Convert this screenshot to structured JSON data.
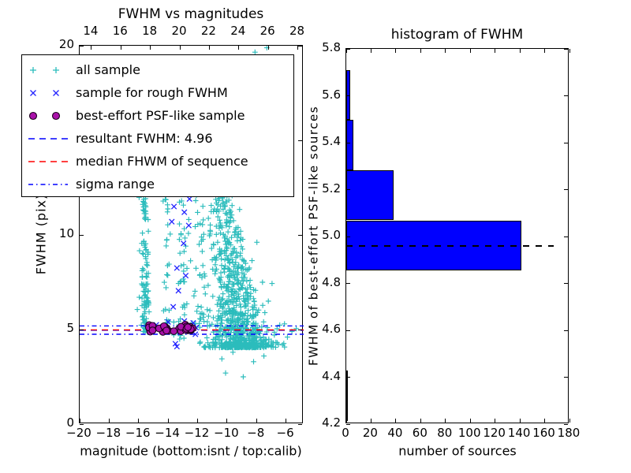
{
  "figure": {
    "background": "#ffffff"
  },
  "colors": {
    "all_sample": "#2bbcbc",
    "rough_fwhm": "#2424ff",
    "psf_sample_fill": "#a911a9",
    "psf_sample_edge": "#1c001c",
    "resultant_line": "#0000ff",
    "median_line": "#ff0000",
    "sigma_line": "#0000ff",
    "hist_bar": "#0000ff",
    "hist_median_dash": "#000000"
  },
  "chart_data": [
    {
      "id": "fwhm_vs_magnitudes",
      "type": "scatter",
      "title": "FWHM vs magnitudes",
      "xlabel": "magnitude (bottom:isnt / top:calib)",
      "ylabel": "FWHM (pix)",
      "xlim": [
        -20,
        -4.8
      ],
      "ylim": [
        0,
        20
      ],
      "xticks": [
        -20,
        -18,
        -16,
        -14,
        -12,
        -10,
        -8,
        -6
      ],
      "yticks": [
        0,
        5,
        10,
        15,
        20
      ],
      "top_axis": {
        "xlim": [
          13.2,
          28.4
        ],
        "xticks": [
          14,
          16,
          18,
          20,
          22,
          24,
          26,
          28
        ]
      },
      "grid": false,
      "legend_position": "upper-left",
      "series": [
        {
          "name": "all sample",
          "marker": "plus",
          "clusters": [
            {
              "cx": -15.55,
              "sx": 0.17,
              "ymin": 4.85,
              "ymax": 13.6,
              "n": 130,
              "ypow": 1.7
            },
            {
              "cx": -14.15,
              "sx": 0.13,
              "ymin": 5.3,
              "ymax": 13.4,
              "n": 32,
              "ypow": 1.2
            },
            {
              "cx": -13.05,
              "sx": 0.22,
              "ymin": 4.45,
              "ymax": 13.6,
              "n": 50,
              "ypow": 1.3
            },
            {
              "cx": -11.85,
              "sx": 0.2,
              "ymin": 4.9,
              "ymax": 13.0,
              "n": 38,
              "ypow": 1.4
            },
            {
              "cx": -9.2,
              "sx": 1.05,
              "ymin": 4.05,
              "ymax": 13.5,
              "n": 900,
              "ypow": 2.4,
              "taper": 0.08,
              "drift": -0.15
            },
            {
              "cx": -11.2,
              "sx": 2.6,
              "ymin": 13.6,
              "ymax": 19.9,
              "n": 30,
              "ypow": 1.0
            }
          ],
          "points": [
            [
              -10.1,
              2.7
            ],
            [
              -8.9,
              2.5
            ],
            [
              -8.2,
              3.3
            ],
            [
              -7.5,
              3.6
            ],
            [
              -10.35,
              3.45
            ],
            [
              -9.6,
              3.8
            ],
            [
              -7.0,
              4.1
            ],
            [
              -6.6,
              4.3
            ],
            [
              -5.6,
              4.9
            ],
            [
              -5.3,
              5.05
            ],
            [
              -5.9,
              4.6
            ],
            [
              -6.1,
              5.3
            ],
            [
              -7.2,
              6.5
            ]
          ]
        },
        {
          "name": "sample for rough FWHM",
          "marker": "x",
          "points": [
            [
              -13.3,
              13.4
            ],
            [
              -12.85,
              13.1
            ],
            [
              -13.55,
              12.9
            ],
            [
              -12.7,
              12.6
            ],
            [
              -13.25,
              12.2
            ],
            [
              -12.55,
              11.9
            ],
            [
              -13.6,
              11.5
            ],
            [
              -12.9,
              11.2
            ],
            [
              -13.75,
              10.7
            ],
            [
              -12.6,
              10.5
            ],
            [
              -12.95,
              9.55
            ],
            [
              -13.4,
              8.25
            ],
            [
              -12.8,
              7.85
            ],
            [
              -13.3,
              7.05
            ],
            [
              -13.65,
              6.2
            ],
            [
              -12.9,
              5.45
            ],
            [
              -14.8,
              5.25
            ],
            [
              -14.35,
              5.15
            ],
            [
              -12.3,
              5.35
            ],
            [
              -12.1,
              5.1
            ],
            [
              -14.0,
              4.95
            ],
            [
              -12.55,
              4.9
            ],
            [
              -13.5,
              4.25
            ],
            [
              -13.4,
              4.1
            ],
            [
              -14.0,
              5.4
            ],
            [
              -12.15,
              4.75
            ]
          ]
        },
        {
          "name": "best-effort PSF-like sample",
          "marker": "circle",
          "blob": {
            "xmin": -15.35,
            "xmax": -12.25,
            "ymean": 5.02,
            "ysd": 0.09,
            "ymin": 4.84,
            "ymax": 5.26,
            "n": 34
          }
        }
      ],
      "lines": [
        {
          "name": "resultant FWHM",
          "value": 4.96,
          "style": "dashed",
          "color_key": "resultant_line"
        },
        {
          "name": "median FHWM of sequence",
          "value": 4.98,
          "style": "dashed",
          "color_key": "median_line"
        },
        {
          "name": "sigma range upper",
          "value": 5.19,
          "style": "dashdot",
          "color_key": "sigma_line"
        },
        {
          "name": "sigma range lower",
          "value": 4.75,
          "style": "dashdot",
          "color_key": "sigma_line"
        }
      ],
      "legend": [
        {
          "label": "all sample",
          "type": "marker",
          "marker": "plus",
          "color_key": "all_sample"
        },
        {
          "label": "sample for rough FWHM",
          "type": "marker",
          "marker": "x",
          "color_key": "rough_fwhm"
        },
        {
          "label": "best-effort PSF-like sample",
          "type": "marker",
          "marker": "circle",
          "color_key": "psf_sample_fill"
        },
        {
          "label": "resultant FWHM: 4.96",
          "type": "line",
          "style": "dashed",
          "color_key": "resultant_line"
        },
        {
          "label": "median FHWM of sequence",
          "type": "line",
          "style": "dashed",
          "color_key": "median_line"
        },
        {
          "label": "sigma range",
          "type": "line",
          "style": "dashdot",
          "color_key": "sigma_line"
        }
      ]
    },
    {
      "id": "histogram_of_fwhm",
      "type": "bar",
      "orientation": "horizontal",
      "title": "histogram of FWHM",
      "xlabel": "number of sources",
      "ylabel": "FWHM of best-effort PSF-like sources",
      "xlim": [
        0,
        180
      ],
      "ylim": [
        4.2,
        5.8
      ],
      "xticks": [
        0,
        20,
        40,
        60,
        80,
        100,
        120,
        140,
        160,
        180
      ],
      "yticks": [
        4.2,
        4.4,
        4.6,
        4.8,
        5.0,
        5.2,
        5.4,
        5.6,
        5.8
      ],
      "ytick_decimals": 1,
      "grid": false,
      "bin_edges": [
        4.215,
        4.428,
        4.642,
        4.855,
        5.069,
        5.282,
        5.496,
        5.71
      ],
      "counts": [
        1,
        0,
        0,
        141,
        38,
        6,
        3
      ],
      "median_line": {
        "value": 4.96,
        "style": "dashed",
        "color_key": "hist_median_dash"
      }
    }
  ]
}
